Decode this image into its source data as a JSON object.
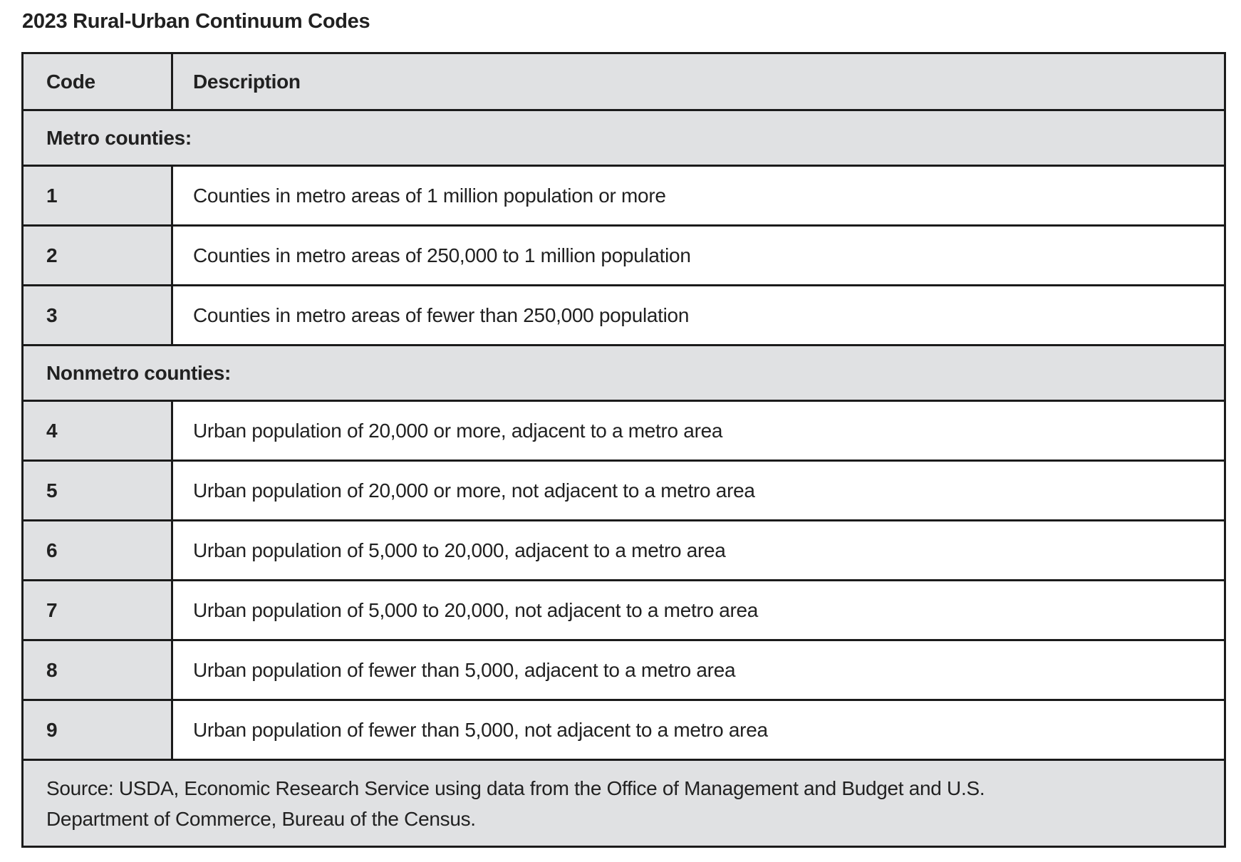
{
  "title": "2023 Rural-Urban Continuum Codes",
  "table": {
    "header": {
      "code": "Code",
      "description": "Description"
    },
    "sections": [
      {
        "label": "Metro counties:",
        "rows": [
          {
            "code": "1",
            "description": "Counties in metro areas of 1 million population or more"
          },
          {
            "code": "2",
            "description": "Counties in metro areas of 250,000 to 1 million population"
          },
          {
            "code": "3",
            "description": "Counties in metro areas of fewer than 250,000 population"
          }
        ]
      },
      {
        "label": "Nonmetro counties:",
        "rows": [
          {
            "code": "4",
            "description": "Urban population of 20,000 or more, adjacent to a metro area"
          },
          {
            "code": "5",
            "description": "Urban population of 20,000 or more, not adjacent to a metro area"
          },
          {
            "code": "6",
            "description": "Urban population of 5,000 to 20,000, adjacent to a metro area"
          },
          {
            "code": "7",
            "description": "Urban population of 5,000 to 20,000, not adjacent to a metro area"
          },
          {
            "code": "8",
            "description": "Urban population of fewer than 5,000, adjacent to a metro area"
          },
          {
            "code": "9",
            "description": "Urban population of fewer than 5,000, not adjacent to a metro area"
          }
        ]
      }
    ],
    "source": {
      "line1": "Source: USDA, Economic Research Service using data from the Office of Management and Budget and U.S.",
      "line2": "Department of Commerce, Bureau of the Census."
    }
  },
  "colors": {
    "row_shade": "#e0e1e3",
    "border": "#1b1b1b",
    "text": "#212121",
    "background": "#ffffff"
  }
}
